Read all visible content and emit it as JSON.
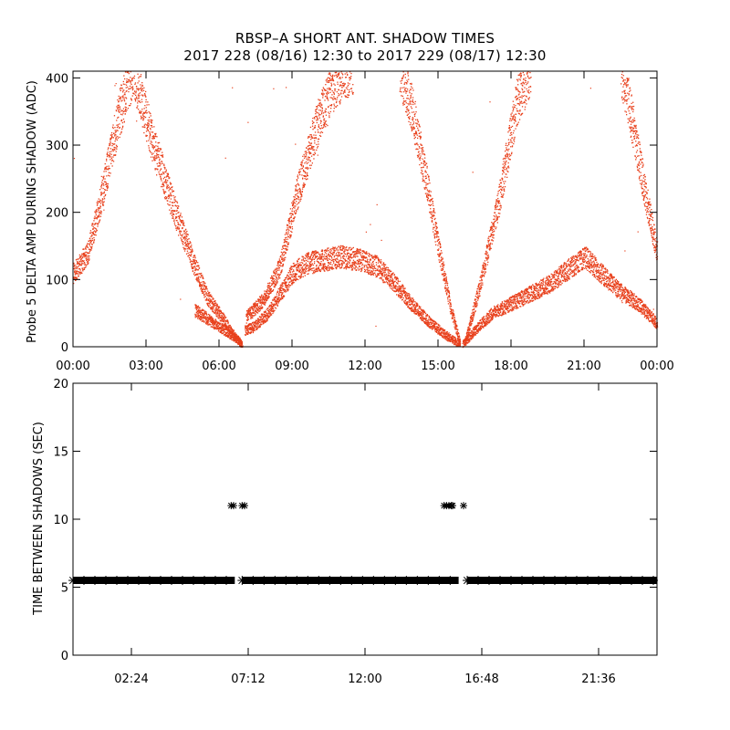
{
  "title": "RBSP–A SHORT ANT. SHADOW TIMES",
  "subtitle": "2017 228 (08/16) 12:30 to 2017 229 (08/17) 12:30",
  "colors": {
    "top_points": "#e8401c",
    "bottom_points": "#000000",
    "axes": "#000000"
  },
  "chart_data": [
    {
      "type": "scatter",
      "title": "",
      "ylabel": "Probe 5 DELTA AMP DURING SHADOW (ADC)",
      "xlabel": "",
      "xlim": [
        0,
        24
      ],
      "ylim": [
        0,
        410
      ],
      "x_unit": "hours",
      "x_ticks": [
        0,
        3,
        6,
        9,
        12,
        15,
        18,
        21,
        24
      ],
      "x_tick_labels": [
        "00:00",
        "03:00",
        "06:00",
        "09:00",
        "12:00",
        "15:00",
        "18:00",
        "21:00",
        "00:00"
      ],
      "y_ticks": [
        0,
        100,
        200,
        300,
        400
      ],
      "y_tick_labels": [
        "0",
        "100",
        "200",
        "300",
        "400"
      ],
      "grid": false,
      "legend": "none",
      "series": [
        {
          "color": "#e8401c",
          "bands": [
            {
              "x": [
                0.0,
                0.6,
                1.2,
                1.9,
                2.5
              ],
              "y": [
                110,
                140,
                230,
                350,
                420
              ]
            },
            {
              "x": [
                2.5,
                3.3,
                4.2,
                4.9,
                5.5,
                6.2,
                6.6,
                6.95
              ],
              "y": [
                410,
                300,
                200,
                130,
                75,
                40,
                18,
                2
              ]
            },
            {
              "x": [
                7.05,
                7.4,
                8.0,
                8.5,
                9.0,
                9.6,
                10.3,
                11.0,
                11.8,
                12.5,
                13.2,
                14.0,
                14.7,
                15.3,
                15.9
              ],
              "y": [
                25,
                30,
                50,
                80,
                110,
                125,
                130,
                135,
                130,
                120,
                95,
                60,
                35,
                18,
                4
              ]
            },
            {
              "x": [
                16.0,
                16.5,
                17.2,
                18.0,
                18.8,
                19.6,
                20.3,
                21.0,
                21.7,
                22.4,
                23.2,
                24.0
              ],
              "y": [
                4,
                25,
                50,
                65,
                80,
                95,
                115,
                135,
                110,
                85,
                65,
                35
              ]
            },
            {
              "x": [
                5.0,
                5.6,
                6.2,
                6.8,
                6.95
              ],
              "y": [
                55,
                40,
                25,
                10,
                2
              ]
            },
            {
              "x": [
                7.1,
                7.8,
                8.5,
                9.2,
                10.0,
                10.8,
                11.5
              ],
              "y": [
                45,
                70,
                120,
                230,
                330,
                400,
                420
              ]
            },
            {
              "x": [
                13.4,
                13.9,
                14.5,
                15.0,
                15.5,
                15.9
              ],
              "y": [
                420,
                360,
                250,
                150,
                60,
                5
              ]
            },
            {
              "x": [
                16.1,
                16.7,
                17.5,
                18.2,
                18.8
              ],
              "y": [
                8,
                90,
                220,
                360,
                420
              ]
            },
            {
              "x": [
                22.5,
                23.0,
                23.5,
                24.0
              ],
              "y": [
                420,
                330,
                230,
                140
              ]
            }
          ]
        }
      ]
    },
    {
      "type": "scatter",
      "title": "",
      "ylabel": "TIME BETWEEN SHADOWS (SEC)",
      "xlabel": "",
      "xlim": [
        0,
        24
      ],
      "ylim": [
        0,
        20
      ],
      "x_unit": "hours",
      "x_ticks": [
        2.4,
        7.2,
        12.0,
        16.8,
        21.6
      ],
      "x_tick_labels": [
        "02:24",
        "07:12",
        "12:00",
        "16:48",
        "21:36"
      ],
      "y_ticks": [
        0,
        5,
        10,
        15,
        20
      ],
      "y_tick_labels": [
        "0",
        "5",
        "10",
        "15",
        "20"
      ],
      "grid": false,
      "legend": "none",
      "marker": "asterisk",
      "series": [
        {
          "color": "#000000",
          "value": 5.5,
          "segments": [
            [
              0.0,
              6.65
            ],
            [
              6.95,
              15.85
            ],
            [
              16.2,
              24.0
            ]
          ],
          "outliers": [
            {
              "x": 6.5,
              "y": 11.0
            },
            {
              "x": 6.6,
              "y": 11.0
            },
            {
              "x": 6.95,
              "y": 11.0
            },
            {
              "x": 7.05,
              "y": 11.0
            },
            {
              "x": 15.25,
              "y": 11.0
            },
            {
              "x": 15.35,
              "y": 11.0
            },
            {
              "x": 15.45,
              "y": 11.0
            },
            {
              "x": 15.55,
              "y": 11.0
            },
            {
              "x": 15.6,
              "y": 11.0
            },
            {
              "x": 16.05,
              "y": 11.0
            }
          ]
        }
      ]
    }
  ]
}
